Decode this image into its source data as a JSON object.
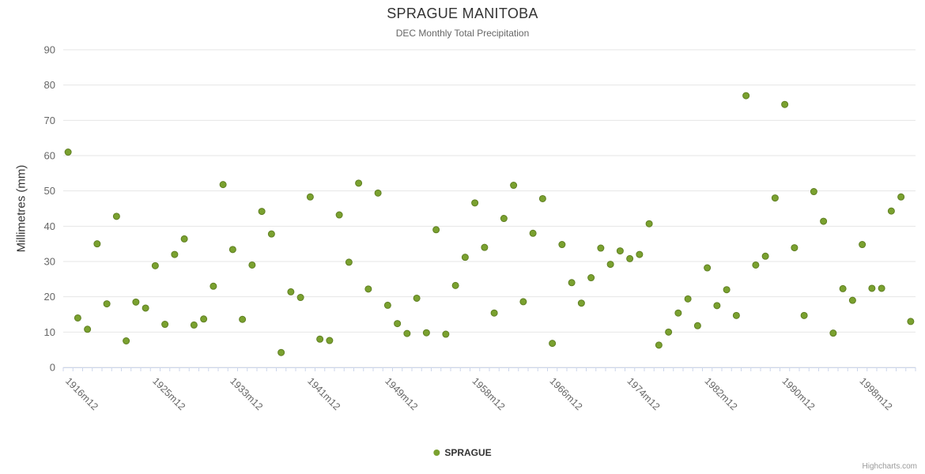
{
  "header": {
    "title": "SPRAGUE MANITOBA",
    "subtitle": "DEC Monthly Total Precipitation"
  },
  "legend": {
    "label": "SPRAGUE"
  },
  "credits": {
    "label": "Highcharts.com"
  },
  "colors": {
    "marker": "#7aa12f",
    "marker_stroke": "#5f7f22",
    "grid": "#e6e6e6",
    "axis_line": "#ccd6eb",
    "tick": "#ccd6eb",
    "axis_label": "#666666"
  },
  "chart_data": {
    "type": "scatter",
    "title": "SPRAGUE MANITOBA",
    "subtitle": "DEC Monthly Total Precipitation",
    "xlabel": "",
    "ylabel": "Millimetres (mm)",
    "ylim": [
      0,
      90
    ],
    "y_ticks": [
      0,
      10,
      20,
      30,
      40,
      50,
      60,
      70,
      80,
      90
    ],
    "grid": true,
    "legend_position": "bottom",
    "series_name": "SPRAGUE",
    "categories": [
      "1916m12",
      "1917m12",
      "1918m12",
      "1919m12",
      "1920m12",
      "1921m12",
      "1922m12",
      "1923m12",
      "1924m12",
      "1925m12",
      "1926m12",
      "1927m12",
      "1928m12",
      "1929m12",
      "1930m12",
      "1931m12",
      "1932m12",
      "1933m12",
      "1934m12",
      "1935m12",
      "1936m12",
      "1937m12",
      "1938m12",
      "1939m12",
      "1940m12",
      "1941m12",
      "1942m12",
      "1943m12",
      "1944m12",
      "1945m12",
      "1946m12",
      "1947m12",
      "1948m12",
      "1949m12",
      "1950m12",
      "1951m12",
      "1952m12",
      "1953m12",
      "1954m12",
      "1955m12",
      "1956m12",
      "1957m12",
      "1958m12",
      "1959m12",
      "1960m12",
      "1961m12",
      "1962m12",
      "1963m12",
      "1964m12",
      "1965m12",
      "1966m12",
      "1967m12",
      "1968m12",
      "1969m12",
      "1970m12",
      "1971m12",
      "1972m12",
      "1973m12",
      "1974m12",
      "1975m12",
      "1976m12",
      "1977m12",
      "1978m12",
      "1979m12",
      "1980m12",
      "1981m12",
      "1982m12",
      "1983m12",
      "1984m12",
      "1985m12",
      "1986m12",
      "1987m12",
      "1988m12",
      "1989m12",
      "1990m12",
      "1991m12",
      "1992m12",
      "1993m12",
      "1994m12",
      "1995m12",
      "1996m12",
      "1997m12",
      "1998m12",
      "1999m12",
      "2000m12",
      "2001m12",
      "2002m12",
      "2003m12"
    ],
    "values": [
      61,
      14,
      10.8,
      35,
      18,
      42.8,
      7.5,
      18.5,
      16.8,
      28.8,
      12.2,
      32,
      36.4,
      12,
      13.7,
      23,
      51.8,
      33.4,
      13.6,
      29,
      44.2,
      37.8,
      4.2,
      21.4,
      19.8,
      48.3,
      8,
      7.6,
      43.2,
      29.8,
      52.2,
      22.2,
      49.4,
      17.6,
      12.4,
      9.6,
      19.6,
      9.8,
      39,
      9.4,
      23.2,
      31.2,
      46.6,
      34,
      15.4,
      42.2,
      51.6,
      18.6,
      38,
      47.8,
      6.8,
      34.8,
      24,
      18.2,
      25.4,
      33.8,
      29.2,
      33,
      30.8,
      32,
      40.7,
      6.3,
      10,
      15.4,
      19.4,
      11.8,
      28.2,
      17.5,
      22,
      14.7,
      77,
      29,
      31.5,
      48,
      74.5,
      33.9,
      14.7,
      49.8,
      41.4,
      9.7,
      22.3,
      19,
      34.8,
      22.4,
      22.4,
      44.3,
      48.3,
      13
    ],
    "x_tick_positions": [
      0,
      9,
      17,
      25,
      33,
      42,
      50,
      58,
      66,
      74,
      82
    ]
  }
}
